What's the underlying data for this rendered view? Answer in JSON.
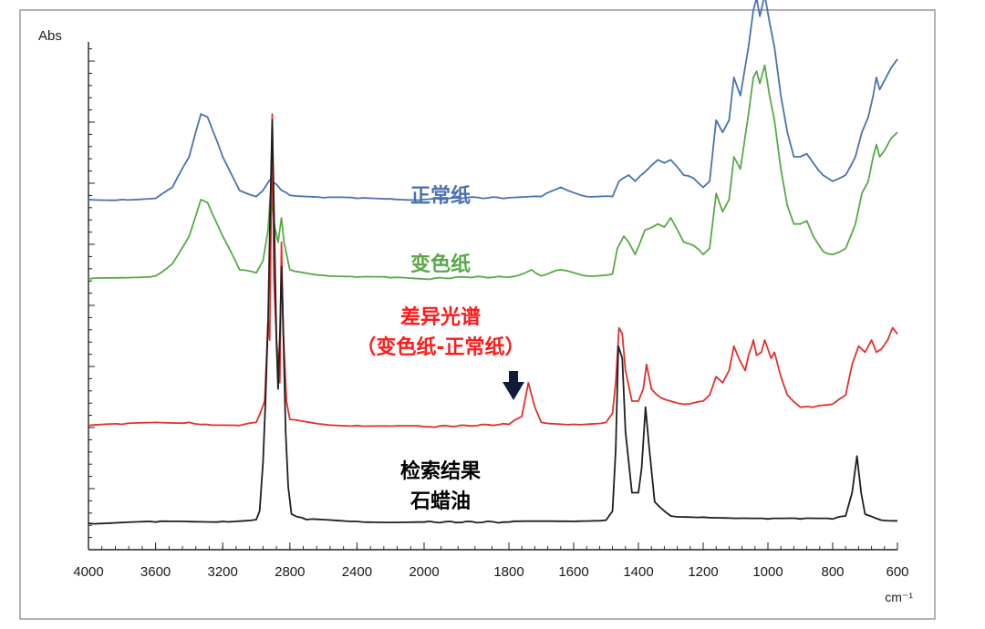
{
  "chart_data": {
    "type": "line",
    "ylabel": "Abs",
    "xlabel": "cm⁻¹",
    "xlim": [
      4000,
      600
    ],
    "x_reversed": true,
    "xticks": [
      4000,
      3600,
      3200,
      2800,
      2400,
      2000,
      1800,
      1600,
      1400,
      1200,
      1000,
      800,
      600
    ],
    "x_break": [
      2000,
      1800
    ],
    "y_tick_marks": true,
    "y_tick_labels": false,
    "grid": false,
    "legend": "inline labels",
    "series": [
      {
        "name": "正常纸",
        "color": "#4a72b0",
        "points": [
          [
            4000,
            5.3
          ],
          [
            3800,
            5.3
          ],
          [
            3600,
            5.32
          ],
          [
            3500,
            5.5
          ],
          [
            3400,
            6.0
          ],
          [
            3330,
            6.7
          ],
          [
            3290,
            6.65
          ],
          [
            3200,
            6.0
          ],
          [
            3100,
            5.45
          ],
          [
            3000,
            5.35
          ],
          [
            2960,
            5.45
          ],
          [
            2920,
            5.62
          ],
          [
            2880,
            5.55
          ],
          [
            2850,
            5.45
          ],
          [
            2800,
            5.37
          ],
          [
            2600,
            5.33
          ],
          [
            2400,
            5.32
          ],
          [
            2200,
            5.31
          ],
          [
            2000,
            5.3
          ],
          [
            1900,
            5.33
          ],
          [
            1800,
            5.33
          ],
          [
            1700,
            5.35
          ],
          [
            1640,
            5.5
          ],
          [
            1560,
            5.35
          ],
          [
            1480,
            5.35
          ],
          [
            1460,
            5.6
          ],
          [
            1430,
            5.7
          ],
          [
            1410,
            5.6
          ],
          [
            1380,
            5.75
          ],
          [
            1340,
            5.95
          ],
          [
            1320,
            5.9
          ],
          [
            1300,
            5.95
          ],
          [
            1260,
            5.7
          ],
          [
            1230,
            5.65
          ],
          [
            1200,
            5.5
          ],
          [
            1180,
            5.6
          ],
          [
            1160,
            6.6
          ],
          [
            1140,
            6.4
          ],
          [
            1120,
            6.6
          ],
          [
            1105,
            7.3
          ],
          [
            1085,
            7.0
          ],
          [
            1060,
            7.8
          ],
          [
            1045,
            8.4
          ],
          [
            1035,
            8.6
          ],
          [
            1025,
            8.3
          ],
          [
            1010,
            8.65
          ],
          [
            995,
            8.2
          ],
          [
            980,
            7.8
          ],
          [
            960,
            7.0
          ],
          [
            940,
            6.4
          ],
          [
            920,
            6.0
          ],
          [
            900,
            6.0
          ],
          [
            880,
            6.05
          ],
          [
            860,
            5.9
          ],
          [
            830,
            5.7
          ],
          [
            800,
            5.6
          ],
          [
            760,
            5.7
          ],
          [
            730,
            6.0
          ],
          [
            710,
            6.4
          ],
          [
            690,
            6.65
          ],
          [
            675,
            7.0
          ],
          [
            665,
            7.3
          ],
          [
            655,
            7.1
          ],
          [
            640,
            7.25
          ],
          [
            620,
            7.45
          ],
          [
            600,
            7.6
          ]
        ]
      },
      {
        "name": "变色纸",
        "color": "#5aa84a",
        "points": [
          [
            4000,
            4.0
          ],
          [
            3800,
            4.02
          ],
          [
            3600,
            4.05
          ],
          [
            3500,
            4.25
          ],
          [
            3400,
            4.7
          ],
          [
            3330,
            5.3
          ],
          [
            3290,
            5.25
          ],
          [
            3200,
            4.7
          ],
          [
            3100,
            4.15
          ],
          [
            3000,
            4.1
          ],
          [
            2960,
            4.3
          ],
          [
            2930,
            4.8
          ],
          [
            2915,
            5.4
          ],
          [
            2890,
            4.85
          ],
          [
            2870,
            4.6
          ],
          [
            2850,
            5.0
          ],
          [
            2835,
            4.6
          ],
          [
            2800,
            4.15
          ],
          [
            2600,
            4.06
          ],
          [
            2400,
            4.03
          ],
          [
            2200,
            4.02
          ],
          [
            2000,
            4.0
          ],
          [
            1900,
            4.03
          ],
          [
            1800,
            4.03
          ],
          [
            1750,
            4.1
          ],
          [
            1730,
            4.15
          ],
          [
            1700,
            4.05
          ],
          [
            1640,
            4.15
          ],
          [
            1560,
            4.05
          ],
          [
            1480,
            4.08
          ],
          [
            1465,
            4.5
          ],
          [
            1445,
            4.7
          ],
          [
            1430,
            4.6
          ],
          [
            1410,
            4.4
          ],
          [
            1380,
            4.8
          ],
          [
            1340,
            4.9
          ],
          [
            1320,
            4.85
          ],
          [
            1300,
            5.0
          ],
          [
            1260,
            4.6
          ],
          [
            1230,
            4.55
          ],
          [
            1200,
            4.4
          ],
          [
            1180,
            4.5
          ],
          [
            1160,
            5.4
          ],
          [
            1140,
            5.1
          ],
          [
            1120,
            5.3
          ],
          [
            1105,
            6.0
          ],
          [
            1085,
            5.8
          ],
          [
            1060,
            6.7
          ],
          [
            1045,
            7.3
          ],
          [
            1035,
            7.4
          ],
          [
            1025,
            7.2
          ],
          [
            1010,
            7.5
          ],
          [
            995,
            7.0
          ],
          [
            980,
            6.6
          ],
          [
            960,
            5.8
          ],
          [
            940,
            5.2
          ],
          [
            920,
            4.9
          ],
          [
            900,
            4.9
          ],
          [
            880,
            4.95
          ],
          [
            860,
            4.7
          ],
          [
            830,
            4.45
          ],
          [
            800,
            4.4
          ],
          [
            760,
            4.5
          ],
          [
            730,
            4.9
          ],
          [
            710,
            5.4
          ],
          [
            690,
            5.6
          ],
          [
            675,
            6.0
          ],
          [
            665,
            6.2
          ],
          [
            655,
            6.0
          ],
          [
            640,
            6.1
          ],
          [
            620,
            6.3
          ],
          [
            600,
            6.4
          ]
        ]
      },
      {
        "name": "差异光谱\n（变色纸-正常纸）",
        "color": "#e03030",
        "points": [
          [
            4000,
            1.6
          ],
          [
            3800,
            1.62
          ],
          [
            3600,
            1.65
          ],
          [
            3400,
            1.65
          ],
          [
            3300,
            1.62
          ],
          [
            3100,
            1.6
          ],
          [
            3000,
            1.65
          ],
          [
            2950,
            2.0
          ],
          [
            2930,
            3.3
          ],
          [
            2920,
            3.0
          ],
          [
            2905,
            6.7
          ],
          [
            2895,
            4.0
          ],
          [
            2880,
            3.0
          ],
          [
            2860,
            2.3
          ],
          [
            2850,
            4.6
          ],
          [
            2840,
            3.2
          ],
          [
            2820,
            2.0
          ],
          [
            2800,
            1.7
          ],
          [
            2600,
            1.62
          ],
          [
            2400,
            1.6
          ],
          [
            2200,
            1.59
          ],
          [
            2000,
            1.58
          ],
          [
            1900,
            1.6
          ],
          [
            1800,
            1.62
          ],
          [
            1760,
            1.75
          ],
          [
            1740,
            2.3
          ],
          [
            1720,
            1.9
          ],
          [
            1700,
            1.65
          ],
          [
            1600,
            1.62
          ],
          [
            1500,
            1.65
          ],
          [
            1480,
            1.8
          ],
          [
            1470,
            2.3
          ],
          [
            1460,
            3.2
          ],
          [
            1450,
            3.1
          ],
          [
            1440,
            2.5
          ],
          [
            1420,
            2.0
          ],
          [
            1400,
            2.0
          ],
          [
            1385,
            2.2
          ],
          [
            1375,
            2.6
          ],
          [
            1360,
            2.2
          ],
          [
            1330,
            2.05
          ],
          [
            1300,
            2.0
          ],
          [
            1260,
            1.95
          ],
          [
            1200,
            2.0
          ],
          [
            1180,
            2.1
          ],
          [
            1160,
            2.4
          ],
          [
            1140,
            2.3
          ],
          [
            1120,
            2.5
          ],
          [
            1105,
            2.9
          ],
          [
            1090,
            2.7
          ],
          [
            1070,
            2.5
          ],
          [
            1060,
            2.75
          ],
          [
            1050,
            2.9
          ],
          [
            1045,
            3.0
          ],
          [
            1035,
            2.75
          ],
          [
            1020,
            2.8
          ],
          [
            1010,
            3.0
          ],
          [
            1000,
            2.85
          ],
          [
            990,
            2.7
          ],
          [
            980,
            2.8
          ],
          [
            960,
            2.4
          ],
          [
            940,
            2.1
          ],
          [
            900,
            1.9
          ],
          [
            860,
            1.9
          ],
          [
            800,
            1.95
          ],
          [
            760,
            2.1
          ],
          [
            740,
            2.6
          ],
          [
            720,
            2.9
          ],
          [
            700,
            2.8
          ],
          [
            680,
            3.0
          ],
          [
            665,
            2.8
          ],
          [
            650,
            2.85
          ],
          [
            630,
            3.0
          ],
          [
            615,
            3.2
          ],
          [
            600,
            3.1
          ]
        ]
      },
      {
        "name": "检索结果\n石蜡油",
        "color": "#1f1f1f",
        "points": [
          [
            4000,
            0.0
          ],
          [
            3600,
            0.02
          ],
          [
            3200,
            0.03
          ],
          [
            3000,
            0.06
          ],
          [
            2980,
            0.2
          ],
          [
            2960,
            1.0
          ],
          [
            2945,
            2.0
          ],
          [
            2930,
            3.3
          ],
          [
            2918,
            5.0
          ],
          [
            2905,
            6.6
          ],
          [
            2890,
            4.5
          ],
          [
            2880,
            3.0
          ],
          [
            2870,
            2.2
          ],
          [
            2858,
            3.2
          ],
          [
            2850,
            4.2
          ],
          [
            2840,
            3.3
          ],
          [
            2825,
            1.5
          ],
          [
            2810,
            0.6
          ],
          [
            2790,
            0.15
          ],
          [
            2700,
            0.06
          ],
          [
            2400,
            0.03
          ],
          [
            2000,
            0.02
          ],
          [
            1800,
            0.02
          ],
          [
            1600,
            0.03
          ],
          [
            1500,
            0.05
          ],
          [
            1480,
            0.2
          ],
          [
            1470,
            1.2
          ],
          [
            1462,
            2.9
          ],
          [
            1450,
            2.7
          ],
          [
            1440,
            1.5
          ],
          [
            1420,
            0.5
          ],
          [
            1400,
            0.5
          ],
          [
            1390,
            0.9
          ],
          [
            1378,
            1.9
          ],
          [
            1368,
            1.3
          ],
          [
            1350,
            0.35
          ],
          [
            1300,
            0.12
          ],
          [
            1200,
            0.1
          ],
          [
            1100,
            0.08
          ],
          [
            1000,
            0.07
          ],
          [
            900,
            0.07
          ],
          [
            800,
            0.07
          ],
          [
            760,
            0.12
          ],
          [
            740,
            0.5
          ],
          [
            725,
            1.1
          ],
          [
            712,
            0.5
          ],
          [
            700,
            0.15
          ],
          [
            650,
            0.05
          ],
          [
            600,
            0.04
          ]
        ]
      }
    ]
  }
}
